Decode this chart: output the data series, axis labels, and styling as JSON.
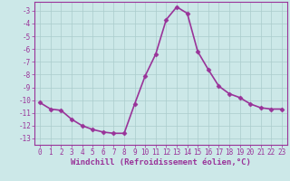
{
  "x": [
    0,
    1,
    2,
    3,
    4,
    5,
    6,
    7,
    8,
    9,
    10,
    11,
    12,
    13,
    14,
    15,
    16,
    17,
    18,
    19,
    20,
    21,
    22,
    23
  ],
  "y": [
    -10.2,
    -10.7,
    -10.8,
    -11.5,
    -12.0,
    -12.3,
    -12.5,
    -12.6,
    -12.6,
    -10.3,
    -8.1,
    -6.4,
    -3.7,
    -2.7,
    -3.2,
    -6.2,
    -7.6,
    -8.9,
    -9.5,
    -9.8,
    -10.3,
    -10.6,
    -10.7,
    -10.7
  ],
  "line_color": "#993399",
  "marker": "D",
  "marker_size": 2.5,
  "bg_color": "#cce8e8",
  "grid_color": "#aacccc",
  "xlabel": "Windchill (Refroidissement éolien,°C)",
  "xlabel_color": "#993399",
  "ylabel_ticks": [
    -3,
    -4,
    -5,
    -6,
    -7,
    -8,
    -9,
    -10,
    -11,
    -12,
    -13
  ],
  "xtick_labels": [
    "0",
    "1",
    "2",
    "3",
    "4",
    "5",
    "6",
    "7",
    "8",
    "9",
    "10",
    "11",
    "12",
    "13",
    "14",
    "15",
    "16",
    "17",
    "18",
    "19",
    "20",
    "21",
    "22",
    "23"
  ],
  "ylim": [
    -13.5,
    -2.3
  ],
  "xlim": [
    -0.5,
    23.5
  ],
  "tick_color": "#993399",
  "tick_fontsize": 5.5,
  "xlabel_fontsize": 6.5,
  "linewidth": 1.2
}
